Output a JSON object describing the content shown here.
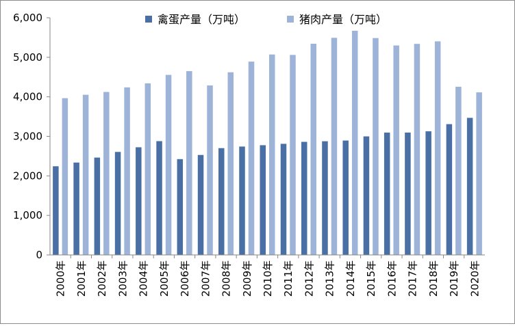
{
  "colors": {
    "egg": "#4a6fa5",
    "pork": "#9eb3d8",
    "axis": "#868686"
  },
  "chart_data": {
    "type": "bar",
    "title": "",
    "xlabel": "",
    "ylabel": "",
    "ylim": [
      0,
      6000
    ],
    "yticks": [
      0,
      1000,
      2000,
      3000,
      4000,
      5000,
      6000
    ],
    "ytick_labels": [
      "0",
      "1,000",
      "2,000",
      "3,000",
      "4,000",
      "5,000",
      "6,000"
    ],
    "grid": false,
    "legend": "top",
    "categories": [
      "2000年",
      "2001年",
      "2002年",
      "2003年",
      "2004年",
      "2005年",
      "2006年",
      "2007年",
      "2008年",
      "2009年",
      "2010年",
      "2011年",
      "2012年",
      "2013年",
      "2014年",
      "2015年",
      "2016年",
      "2017年",
      "2018年",
      "2019年",
      "2020年"
    ],
    "series": [
      {
        "name": "禽蛋产量（万吨）",
        "color": "#4a6fa5",
        "values": [
          2243,
          2337,
          2463,
          2606,
          2724,
          2879,
          2424,
          2529,
          2702,
          2742,
          2776,
          2811,
          2861,
          2876,
          2894,
          2999,
          3095,
          3096,
          3128,
          3309,
          3468
        ]
      },
      {
        "name": "猪肉产量（万吨）",
        "color": "#9eb3d8",
        "values": [
          3966,
          4052,
          4123,
          4239,
          4341,
          4555,
          4650,
          4288,
          4621,
          4891,
          5071,
          5060,
          5343,
          5493,
          5671,
          5487,
          5299,
          5340,
          5404,
          4255,
          4113
        ]
      }
    ]
  }
}
